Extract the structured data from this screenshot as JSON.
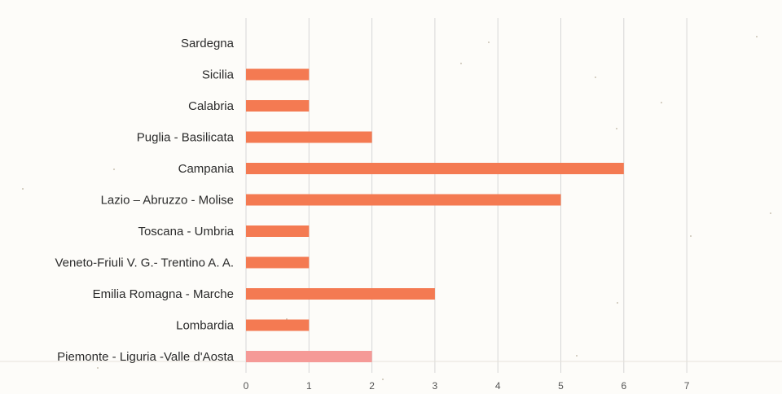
{
  "chart_data": {
    "type": "bar",
    "orientation": "horizontal",
    "categories": [
      "Sardegna",
      "Sicilia",
      "Calabria",
      "Puglia - Basilicata",
      "Campania",
      "Lazio – Abruzzo - Molise",
      "Toscana - Umbria",
      "Veneto-Friuli V. G.- Trentino A. A.",
      "Emilia Romagna - Marche",
      "Lombardia",
      "Piemonte - Liguria -Valle d'Aosta"
    ],
    "values": [
      0,
      1,
      1,
      2,
      6,
      5,
      1,
      1,
      3,
      1,
      2
    ],
    "xlim": [
      0,
      7
    ],
    "xticks": [
      0,
      1,
      2,
      3,
      4,
      5,
      6,
      7
    ],
    "title": "",
    "xlabel": "",
    "ylabel": "",
    "grid": "vertical",
    "legend": "none",
    "colors": {
      "bar": "#f47a52",
      "bar_last": "#f59a97",
      "grid": "#d6d6d6",
      "text": "#2b2b2b",
      "background": "#fdfcf9"
    }
  }
}
